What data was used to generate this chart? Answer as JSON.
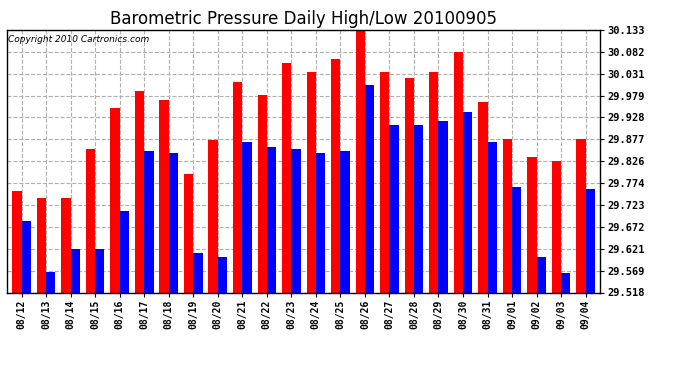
{
  "title": "Barometric Pressure Daily High/Low 20100905",
  "copyright": "Copyright 2010 Cartronics.com",
  "dates": [
    "08/12",
    "08/13",
    "08/14",
    "08/15",
    "08/16",
    "08/17",
    "08/18",
    "08/19",
    "08/20",
    "08/21",
    "08/22",
    "08/23",
    "08/24",
    "08/25",
    "08/26",
    "08/27",
    "08/28",
    "08/29",
    "08/30",
    "08/31",
    "09/01",
    "09/02",
    "09/03",
    "09/04"
  ],
  "highs": [
    29.755,
    29.74,
    29.74,
    29.855,
    29.95,
    29.99,
    29.97,
    29.795,
    29.875,
    30.01,
    29.98,
    30.055,
    30.035,
    30.065,
    30.133,
    30.035,
    30.02,
    30.035,
    30.082,
    29.965,
    29.877,
    29.835,
    29.826,
    29.877
  ],
  "lows": [
    29.685,
    29.565,
    29.62,
    29.62,
    29.71,
    29.85,
    29.845,
    29.61,
    29.6,
    29.87,
    29.86,
    29.855,
    29.845,
    29.85,
    30.005,
    29.91,
    29.91,
    29.92,
    29.94,
    29.87,
    29.765,
    29.6,
    29.563,
    29.76
  ],
  "ymin": 29.518,
  "ymax": 30.133,
  "yticks": [
    29.518,
    29.569,
    29.621,
    29.672,
    29.723,
    29.774,
    29.826,
    29.877,
    29.928,
    29.979,
    30.031,
    30.082,
    30.133
  ],
  "high_color": "#ff0000",
  "low_color": "#0000ff",
  "bg_color": "#ffffff",
  "grid_color": "#b0b0b0",
  "title_fontsize": 12,
  "bar_width": 0.38
}
